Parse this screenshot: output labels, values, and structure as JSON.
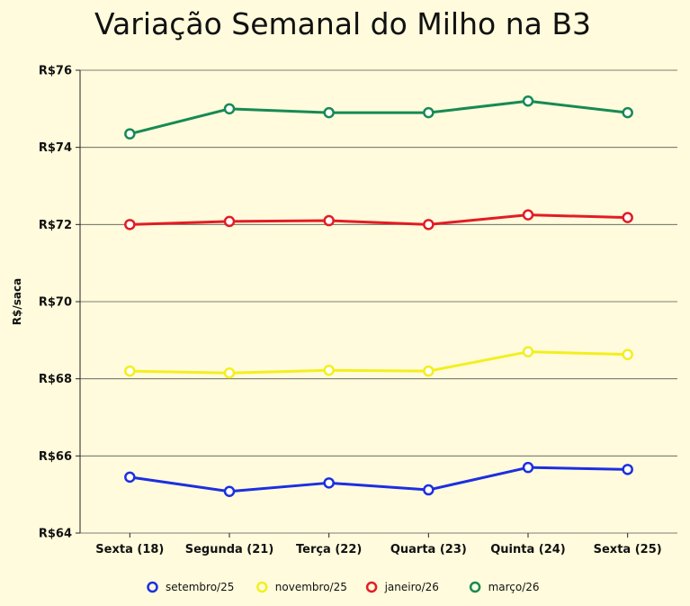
{
  "chart_data": {
    "type": "line",
    "title": "Variação Semanal do Milho na B3",
    "ylabel": "R$/saca",
    "xlabel": "",
    "categories": [
      "Sexta (18)",
      "Segunda (21)",
      "Terça (22)",
      "Quarta (23)",
      "Quinta (24)",
      "Sexta (25)"
    ],
    "ylim": [
      64,
      76
    ],
    "yticks": [
      64,
      66,
      68,
      70,
      72,
      74,
      76
    ],
    "ytick_labels": [
      "R$64",
      "R$66",
      "R$68",
      "R$70",
      "R$72",
      "R$74",
      "R$76"
    ],
    "grid": true,
    "legend_position": "bottom",
    "series": [
      {
        "name": "setembro/25",
        "color": "#1c2fe0",
        "values": [
          65.45,
          65.08,
          65.3,
          65.12,
          65.7,
          65.65
        ]
      },
      {
        "name": "novembro/25",
        "color": "#f3ef1f",
        "values": [
          68.2,
          68.15,
          68.22,
          68.2,
          68.7,
          68.63
        ]
      },
      {
        "name": "janeiro/26",
        "color": "#e31c24",
        "values": [
          72.0,
          72.08,
          72.1,
          72.0,
          72.25,
          72.18
        ]
      },
      {
        "name": "março/26",
        "color": "#178a54",
        "values": [
          74.35,
          75.0,
          74.9,
          74.9,
          75.2,
          74.9
        ]
      }
    ]
  }
}
